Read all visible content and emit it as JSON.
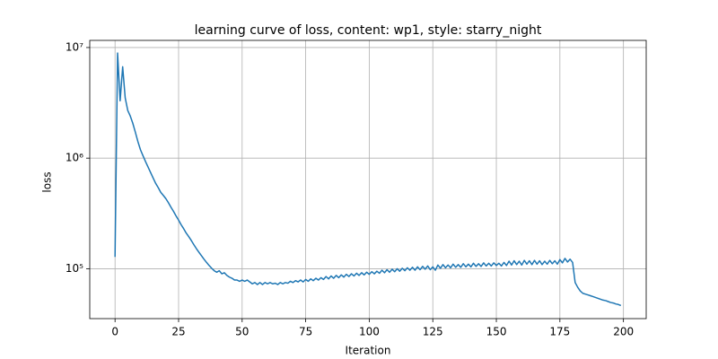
{
  "chart_data": {
    "type": "line",
    "title": "learning curve of loss, content: wp1, style: starry_night",
    "x_label": "Iteration",
    "y_label": "loss",
    "y_scale": "log",
    "grid": true,
    "color": "#1f77b4",
    "x": [
      0,
      1,
      2,
      3,
      4,
      5,
      6,
      7,
      8,
      9,
      10,
      11,
      12,
      13,
      14,
      15,
      16,
      17,
      18,
      19,
      20,
      21,
      22,
      23,
      24,
      25,
      26,
      27,
      28,
      29,
      30,
      31,
      32,
      33,
      34,
      35,
      36,
      37,
      38,
      39,
      40,
      41,
      42,
      43,
      44,
      45,
      46,
      47,
      48,
      49,
      50,
      51,
      52,
      53,
      54,
      55,
      56,
      57,
      58,
      59,
      60,
      61,
      62,
      63,
      64,
      65,
      66,
      67,
      68,
      69,
      70,
      71,
      72,
      73,
      74,
      75,
      76,
      77,
      78,
      79,
      80,
      81,
      82,
      83,
      84,
      85,
      86,
      87,
      88,
      89,
      90,
      91,
      92,
      93,
      94,
      95,
      96,
      97,
      98,
      99,
      100,
      101,
      102,
      103,
      104,
      105,
      106,
      107,
      108,
      109,
      110,
      111,
      112,
      113,
      114,
      115,
      116,
      117,
      118,
      119,
      120,
      121,
      122,
      123,
      124,
      125,
      126,
      127,
      128,
      129,
      130,
      131,
      132,
      133,
      134,
      135,
      136,
      137,
      138,
      139,
      140,
      141,
      142,
      143,
      144,
      145,
      146,
      147,
      148,
      149,
      150,
      151,
      152,
      153,
      154,
      155,
      156,
      157,
      158,
      159,
      160,
      161,
      162,
      163,
      164,
      165,
      166,
      167,
      168,
      169,
      170,
      171,
      172,
      173,
      174,
      175,
      176,
      177,
      178,
      179,
      180,
      181,
      182,
      183,
      184,
      185,
      186,
      187,
      188,
      189,
      190,
      191,
      192,
      193,
      194,
      195,
      196,
      197,
      198,
      199
    ],
    "values": [
      128000,
      8900000,
      3300000,
      6700000,
      3500000,
      2700000,
      2400000,
      2060000,
      1710000,
      1410000,
      1190000,
      1050000,
      930000,
      830000,
      740000,
      660000,
      590000,
      540000,
      490000,
      460000,
      430000,
      395000,
      360000,
      330000,
      300000,
      275000,
      250000,
      230000,
      210000,
      195000,
      180000,
      165000,
      152000,
      141000,
      131000,
      122000,
      114000,
      107000,
      101000,
      96000,
      93000,
      96000,
      90000,
      92000,
      87000,
      84000,
      82000,
      79000,
      79000,
      77000,
      79000,
      77000,
      79000,
      76000,
      73000,
      75000,
      72000,
      75000,
      72000,
      75000,
      73000,
      75000,
      73000,
      74000,
      72000,
      75000,
      73000,
      75000,
      74000,
      77000,
      75000,
      78000,
      76000,
      79000,
      76000,
      80000,
      77000,
      81000,
      78000,
      82000,
      79000,
      83000,
      80000,
      85000,
      81000,
      86000,
      82000,
      87000,
      83000,
      88000,
      84000,
      89000,
      85000,
      90000,
      86000,
      91000,
      87000,
      92000,
      88000,
      93000,
      89000,
      94000,
      90000,
      95000,
      91000,
      97000,
      92000,
      98000,
      93000,
      99000,
      94000,
      100000,
      95000,
      101000,
      96000,
      102000,
      97000,
      103000,
      97000,
      104000,
      98000,
      105000,
      99000,
      106000,
      98000,
      104000,
      97000,
      108000,
      101000,
      109000,
      102000,
      108000,
      102000,
      110000,
      103000,
      109000,
      103000,
      111000,
      104000,
      110000,
      104000,
      112000,
      105000,
      111000,
      105000,
      113000,
      106000,
      112000,
      106000,
      113000,
      107000,
      112000,
      106000,
      114000,
      107000,
      117000,
      108000,
      118000,
      109000,
      117000,
      108000,
      119000,
      110000,
      118000,
      109000,
      119000,
      110000,
      118000,
      109000,
      117000,
      110000,
      119000,
      111000,
      118000,
      110000,
      121000,
      113000,
      124000,
      115000,
      122000,
      114000,
      75000,
      68000,
      63000,
      60000,
      59000,
      58000,
      57000,
      56000,
      55000,
      54000,
      53000,
      52000,
      51500,
      50500,
      49500,
      49000,
      48000,
      47500,
      46500
    ],
    "xlim": [
      -9.95,
      208.95
    ],
    "xticks": [
      0,
      25,
      50,
      75,
      100,
      125,
      150,
      175,
      200
    ],
    "ylim": [
      35400,
      11600000
    ],
    "yticks": [
      {
        "value": 100000,
        "label": "10⁵"
      },
      {
        "value": 1000000,
        "label": "10⁶"
      },
      {
        "value": 10000000,
        "label": "10⁷"
      }
    ]
  }
}
